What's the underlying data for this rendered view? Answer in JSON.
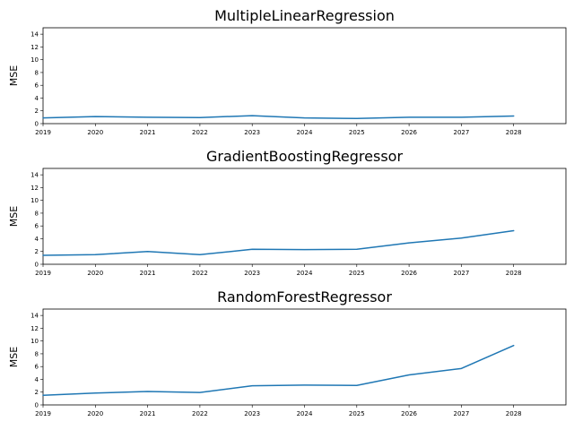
{
  "colors": {
    "series": "#1f77b4",
    "axis": "#000000",
    "background": "#ffffff"
  },
  "chart_data": [
    {
      "type": "line",
      "title": "MultipleLinearRegression",
      "xlabel": "",
      "ylabel": "MSE",
      "x": [
        2019,
        2020,
        2021,
        2022,
        2023,
        2024,
        2025,
        2026,
        2027,
        2028
      ],
      "xlim": [
        2019,
        2029
      ],
      "ylim": [
        0,
        15
      ],
      "yticks": [
        0,
        2,
        4,
        6,
        8,
        10,
        12,
        14
      ],
      "grid": false,
      "series": [
        {
          "values": [
            0.9,
            1.1,
            1.0,
            0.95,
            1.25,
            0.9,
            0.8,
            1.0,
            1.0,
            1.2
          ]
        }
      ]
    },
    {
      "type": "line",
      "title": "GradientBoostingRegressor",
      "xlabel": "",
      "ylabel": "MSE",
      "x": [
        2019,
        2020,
        2021,
        2022,
        2023,
        2024,
        2025,
        2026,
        2027,
        2028
      ],
      "xlim": [
        2019,
        2029
      ],
      "ylim": [
        0,
        15
      ],
      "yticks": [
        0,
        2,
        4,
        6,
        8,
        10,
        12,
        14
      ],
      "grid": false,
      "series": [
        {
          "values": [
            1.4,
            1.5,
            2.0,
            1.5,
            2.35,
            2.3,
            2.35,
            3.35,
            4.1,
            5.25
          ]
        }
      ]
    },
    {
      "type": "line",
      "title": "RandomForestRegressor",
      "xlabel": "",
      "ylabel": "MSE",
      "x": [
        2019,
        2020,
        2021,
        2022,
        2023,
        2024,
        2025,
        2026,
        2027,
        2028
      ],
      "xlim": [
        2019,
        2029
      ],
      "ylim": [
        0,
        15
      ],
      "yticks": [
        0,
        2,
        4,
        6,
        8,
        10,
        12,
        14
      ],
      "grid": false,
      "series": [
        {
          "values": [
            1.5,
            1.85,
            2.1,
            1.95,
            3.0,
            3.1,
            3.05,
            4.7,
            5.7,
            9.3
          ]
        }
      ]
    }
  ]
}
